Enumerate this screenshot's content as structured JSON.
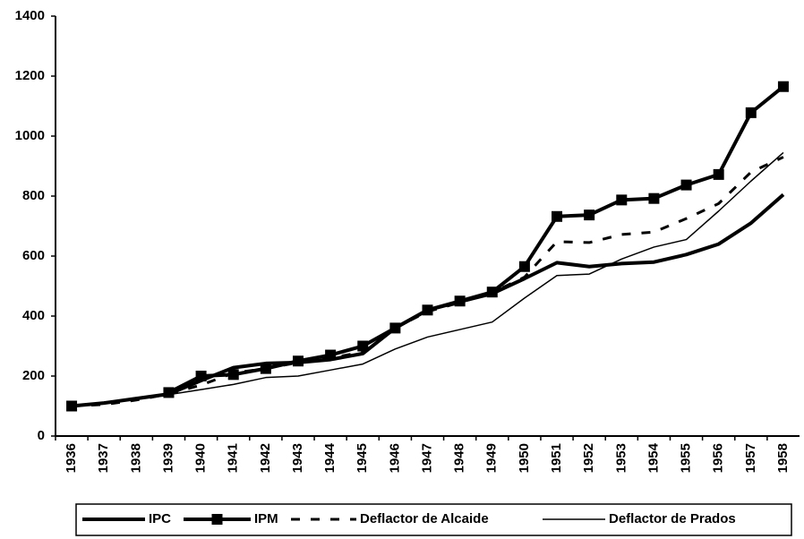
{
  "chart_data": {
    "type": "line",
    "categories": [
      "1936",
      "1937",
      "1938",
      "1939",
      "1940",
      "1941",
      "1942",
      "1943",
      "1944",
      "1945",
      "1946",
      "1947",
      "1948",
      "1949",
      "1950",
      "1951",
      "1952",
      "1953",
      "1954",
      "1955",
      "1956",
      "1957",
      "1958"
    ],
    "ylim": [
      0,
      1400
    ],
    "yticks": [
      0,
      200,
      400,
      600,
      800,
      1000,
      1200,
      1400
    ],
    "series": [
      {
        "name": "IPC",
        "color": "#000000",
        "width": 4,
        "dash": "solid",
        "marker": "none",
        "values": [
          100,
          110,
          125,
          140,
          185,
          228,
          242,
          245,
          255,
          275,
          360,
          420,
          448,
          475,
          525,
          578,
          565,
          575,
          580,
          605,
          640,
          710,
          805
        ]
      },
      {
        "name": "IPM",
        "color": "#000000",
        "width": 4,
        "dash": "solid",
        "marker": "square",
        "values": [
          100,
          null,
          null,
          145,
          200,
          205,
          225,
          250,
          270,
          300,
          360,
          420,
          450,
          480,
          565,
          732,
          737,
          787,
          792,
          837,
          872,
          1078,
          1165
        ]
      },
      {
        "name": "Deflactor de Alcaide",
        "color": "#000000",
        "width": 3,
        "dash": "dashed",
        "marker": "none",
        "values": [
          100,
          105,
          120,
          140,
          170,
          210,
          225,
          245,
          260,
          280,
          360,
          415,
          445,
          478,
          530,
          648,
          645,
          672,
          680,
          725,
          775,
          880,
          930
        ]
      },
      {
        "name": "Deflactor de Prados",
        "color": "#000000",
        "width": 1.5,
        "dash": "solid",
        "marker": "none",
        "values": [
          100,
          112,
          128,
          138,
          155,
          172,
          195,
          200,
          220,
          240,
          290,
          330,
          355,
          380,
          460,
          535,
          540,
          590,
          630,
          655,
          750,
          850,
          945
        ]
      }
    ],
    "legend": "bottom"
  }
}
